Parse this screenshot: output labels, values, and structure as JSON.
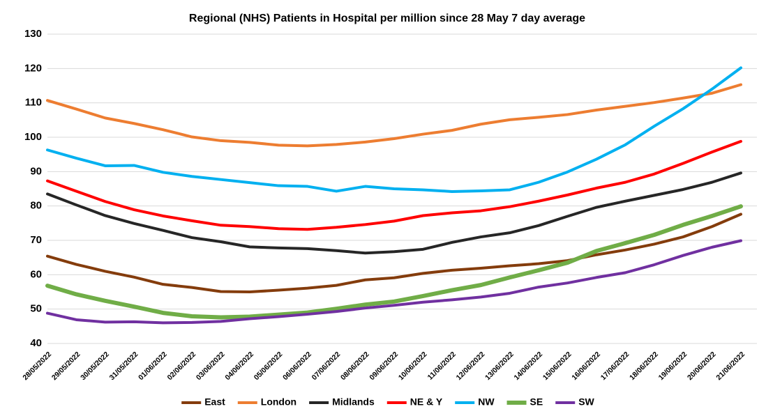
{
  "chart_data": {
    "type": "line",
    "title": "Regional (NHS) Patients in Hospital per million since 28 May 7 day average",
    "categories": [
      "28/05/2022",
      "29/05/2022",
      "30/05/2022",
      "31/05/2022",
      "01/06/2022",
      "02/06/2022",
      "03/06/2022",
      "04/06/2022",
      "05/06/2022",
      "06/06/2022",
      "07/06/2022",
      "08/06/2022",
      "09/06/2022",
      "10/06/2022",
      "11/06/2022",
      "12/06/2022",
      "13/06/2022",
      "14/06/2022",
      "15/06/2022",
      "16/06/2022",
      "17/06/2022",
      "18/06/2022",
      "19/06/2022",
      "20/06/2022",
      "21/06/2022"
    ],
    "series": [
      {
        "name": "East",
        "color": "#843c0c",
        "values": [
          65.4,
          63.0,
          61.0,
          59.3,
          57.2,
          56.3,
          55.1,
          55.0,
          55.5,
          56.1,
          56.9,
          58.5,
          59.1,
          60.4,
          61.3,
          61.9,
          62.6,
          63.2,
          64.1,
          65.8,
          67.2,
          68.9,
          71.0,
          74.0,
          77.6
        ]
      },
      {
        "name": "London",
        "color": "#ed7d31",
        "values": [
          110.7,
          108.2,
          105.6,
          104.0,
          102.2,
          100.1,
          99.0,
          98.5,
          97.7,
          97.5,
          97.9,
          98.6,
          99.6,
          100.9,
          102.0,
          103.8,
          105.1,
          105.8,
          106.6,
          107.9,
          109.0,
          110.1,
          111.4,
          112.8,
          115.3
        ]
      },
      {
        "name": "Midlands",
        "color": "#262626",
        "values": [
          83.5,
          80.3,
          77.2,
          74.9,
          72.9,
          70.8,
          69.6,
          68.1,
          67.8,
          67.6,
          67.0,
          66.3,
          66.7,
          67.4,
          69.4,
          71.0,
          72.2,
          74.3,
          77.0,
          79.6,
          81.4,
          83.1,
          84.8,
          86.9,
          89.6
        ]
      },
      {
        "name": "NE & Y",
        "color": "#ff0000",
        "values": [
          87.3,
          84.3,
          81.3,
          78.9,
          77.1,
          75.7,
          74.4,
          74.0,
          73.4,
          73.2,
          73.8,
          74.6,
          75.6,
          77.2,
          78.0,
          78.6,
          79.8,
          81.4,
          83.2,
          85.2,
          86.9,
          89.3,
          92.4,
          95.7,
          98.8
        ]
      },
      {
        "name": "NW",
        "color": "#00b0f0",
        "values": [
          96.3,
          93.9,
          91.7,
          91.8,
          89.8,
          88.6,
          87.7,
          86.8,
          85.9,
          85.7,
          84.3,
          85.7,
          85.0,
          84.7,
          84.2,
          84.4,
          84.7,
          86.9,
          89.9,
          93.6,
          97.8,
          103.2,
          108.3,
          114.0,
          120.2
        ]
      },
      {
        "name": "SE",
        "color": "#70ad47",
        "values": [
          56.8,
          54.3,
          52.4,
          50.7,
          48.9,
          47.9,
          47.6,
          47.8,
          48.4,
          49.0,
          50.1,
          51.3,
          52.2,
          53.8,
          55.5,
          57.0,
          59.2,
          61.3,
          63.5,
          66.9,
          69.2,
          71.6,
          74.5,
          77.1,
          79.9
        ]
      },
      {
        "name": "SW",
        "color": "#7030a0",
        "values": [
          48.8,
          46.9,
          46.2,
          46.3,
          46.0,
          46.1,
          46.4,
          47.2,
          47.8,
          48.5,
          49.3,
          50.3,
          51.1,
          52.0,
          52.7,
          53.5,
          54.6,
          56.4,
          57.6,
          59.2,
          60.6,
          62.9,
          65.6,
          68.0,
          69.9
        ]
      }
    ],
    "ylim": [
      40,
      130
    ],
    "yticks": [
      40,
      50,
      60,
      70,
      80,
      90,
      100,
      110,
      120,
      130
    ],
    "grid": true,
    "legend": "bottom"
  }
}
